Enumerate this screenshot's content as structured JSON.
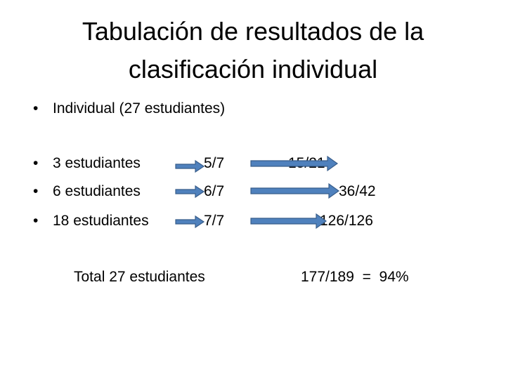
{
  "title": "Tabulación de resultados de la clasificación individual",
  "intro": "Individual (27 estudiantes)",
  "rows": [
    {
      "label": "3 estudiantes",
      "ratio": "5/7",
      "result": "15/21"
    },
    {
      "label": "6 estudiantes",
      "ratio": "6/7",
      "result": "36/42"
    },
    {
      "label": "18 estudiantes",
      "ratio": "7/7",
      "result": "126/126"
    }
  ],
  "total": {
    "label": "Total 27 estudiantes",
    "result": "177/189  =  94%"
  }
}
